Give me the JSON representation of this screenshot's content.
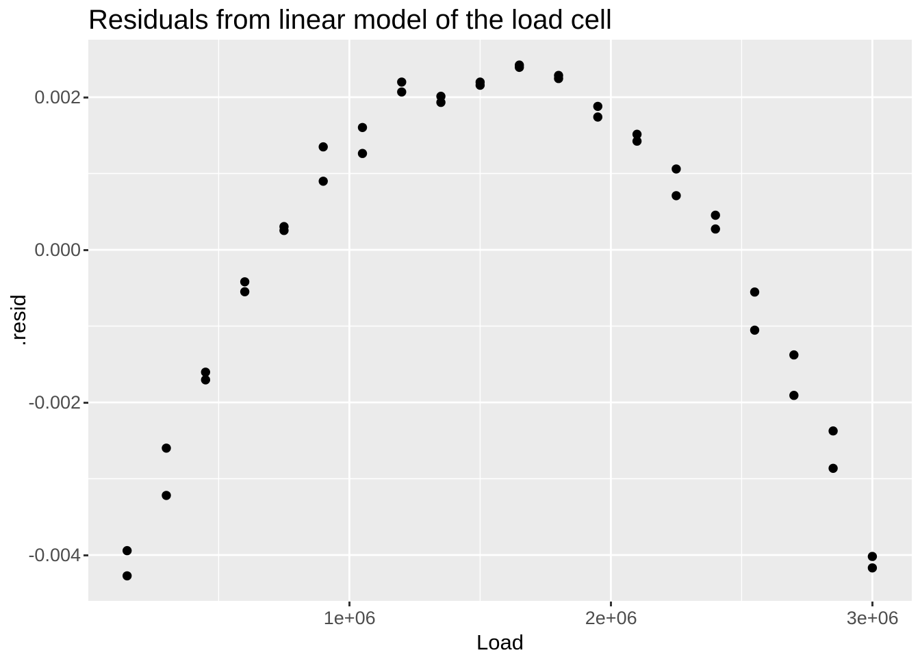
{
  "chart_data": {
    "type": "scatter",
    "title": "Residuals from linear model of the load cell",
    "xlabel": "Load",
    "ylabel": ".resid",
    "x_ticks": [
      {
        "value": 1000000,
        "label": "1e+06"
      },
      {
        "value": 2000000,
        "label": "2e+06"
      },
      {
        "value": 3000000,
        "label": "3e+06"
      }
    ],
    "y_ticks": [
      {
        "value": 0.002,
        "label": "0.002"
      },
      {
        "value": 0.0,
        "label": "0.000"
      },
      {
        "value": -0.002,
        "label": "-0.002"
      },
      {
        "value": -0.004,
        "label": "-0.004"
      }
    ],
    "minor_x": [
      500000,
      1500000,
      2500000
    ],
    "minor_y": [
      0.001,
      -0.001,
      -0.003
    ],
    "xlim": [
      0,
      3151000
    ],
    "ylim": [
      -0.0046,
      0.00275
    ],
    "grid": true,
    "legend": "none",
    "points": [
      {
        "load": 150000,
        "resid": -0.004273
      },
      {
        "load": 150000,
        "resid": -0.003943
      },
      {
        "load": 300000,
        "resid": -0.003219
      },
      {
        "load": 300000,
        "resid": -0.002599
      },
      {
        "load": 450000,
        "resid": -0.001604
      },
      {
        "load": 450000,
        "resid": -0.001704
      },
      {
        "load": 600000,
        "resid": -0.00042
      },
      {
        "load": 600000,
        "resid": -0.00055
      },
      {
        "load": 750000,
        "resid": 0.000304
      },
      {
        "load": 750000,
        "resid": 0.000254
      },
      {
        "load": 900000,
        "resid": 0.000899
      },
      {
        "load": 900000,
        "resid": 0.001349
      },
      {
        "load": 1050000,
        "resid": 0.001263
      },
      {
        "load": 1050000,
        "resid": 0.001603
      },
      {
        "load": 1200000,
        "resid": 0.002198
      },
      {
        "load": 1200000,
        "resid": 0.002068
      },
      {
        "load": 1350000,
        "resid": 0.001932
      },
      {
        "load": 1350000,
        "resid": 0.002012
      },
      {
        "load": 1500000,
        "resid": 0.002157
      },
      {
        "load": 1500000,
        "resid": 0.002197
      },
      {
        "load": 1650000,
        "resid": 0.002391
      },
      {
        "load": 1650000,
        "resid": 0.002421
      },
      {
        "load": 1800000,
        "resid": 0.002285
      },
      {
        "load": 1800000,
        "resid": 0.002245
      },
      {
        "load": 1950000,
        "resid": 0.00174
      },
      {
        "load": 1950000,
        "resid": 0.00188
      },
      {
        "load": 2100000,
        "resid": 0.001424
      },
      {
        "load": 2100000,
        "resid": 0.001514
      },
      {
        "load": 2250000,
        "resid": 0.001059
      },
      {
        "load": 2250000,
        "resid": 0.000709
      },
      {
        "load": 2400000,
        "resid": 0.000273
      },
      {
        "load": 2400000,
        "resid": 0.000453
      },
      {
        "load": 2550000,
        "resid": -0.001053
      },
      {
        "load": 2550000,
        "resid": -0.000553
      },
      {
        "load": 2700000,
        "resid": -0.001908
      },
      {
        "load": 2700000,
        "resid": -0.001378
      },
      {
        "load": 2850000,
        "resid": -0.002864
      },
      {
        "load": 2850000,
        "resid": -0.002374
      },
      {
        "load": 3000000,
        "resid": -0.004019
      },
      {
        "load": 3000000,
        "resid": -0.004169
      }
    ],
    "style": {
      "panel_bg": "#EBEBEB",
      "grid_color": "#FFFFFF",
      "point_color": "#000000",
      "tick_text_color": "#4D4D4D",
      "tick_mark_color": "#333333",
      "title_color": "#000000",
      "point_radius": 6.7
    }
  }
}
